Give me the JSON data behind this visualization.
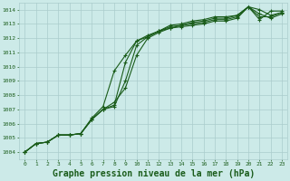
{
  "background_color": "#cceae8",
  "grid_color": "#aacccc",
  "line_color": "#1a5c1a",
  "xlabel": "Graphe pression niveau de la mer (hPa)",
  "xlabel_fontsize": 7.0,
  "xlim": [
    -0.5,
    23.5
  ],
  "ylim": [
    1003.5,
    1014.5
  ],
  "yticks": [
    1004,
    1005,
    1006,
    1007,
    1008,
    1009,
    1010,
    1011,
    1012,
    1013,
    1014
  ],
  "xticks": [
    0,
    1,
    2,
    3,
    4,
    5,
    6,
    7,
    8,
    9,
    10,
    11,
    12,
    13,
    14,
    15,
    16,
    17,
    18,
    19,
    20,
    21,
    22,
    23
  ],
  "series": [
    [
      1004.0,
      1004.6,
      1004.7,
      1005.2,
      1005.2,
      1005.3,
      1006.4,
      1007.2,
      1009.7,
      1010.8,
      1011.8,
      1012.1,
      1012.5,
      1012.7,
      1012.8,
      1012.9,
      1013.0,
      1013.2,
      1013.2,
      1013.4,
      1014.2,
      1013.3,
      1013.9,
      1013.9
    ],
    [
      1004.0,
      1004.6,
      1004.7,
      1005.2,
      1005.2,
      1005.3,
      1006.3,
      1007.0,
      1007.2,
      1009.0,
      1011.5,
      1012.1,
      1012.5,
      1012.8,
      1012.9,
      1013.0,
      1013.1,
      1013.3,
      1013.3,
      1013.5,
      1014.2,
      1013.5,
      1013.5,
      1013.8
    ],
    [
      1004.0,
      1004.6,
      1004.7,
      1005.2,
      1005.2,
      1005.3,
      1006.3,
      1007.0,
      1007.3,
      1010.3,
      1011.8,
      1012.2,
      1012.5,
      1012.9,
      1013.0,
      1013.2,
      1013.3,
      1013.5,
      1013.5,
      1013.6,
      1014.2,
      1014.0,
      1013.6,
      1013.8
    ],
    [
      1004.0,
      1004.6,
      1004.7,
      1005.2,
      1005.2,
      1005.3,
      1006.3,
      1007.0,
      1007.5,
      1008.5,
      1010.8,
      1012.0,
      1012.4,
      1012.7,
      1012.9,
      1013.1,
      1013.2,
      1013.4,
      1013.4,
      1013.6,
      1014.2,
      1013.7,
      1013.4,
      1013.7
    ]
  ]
}
